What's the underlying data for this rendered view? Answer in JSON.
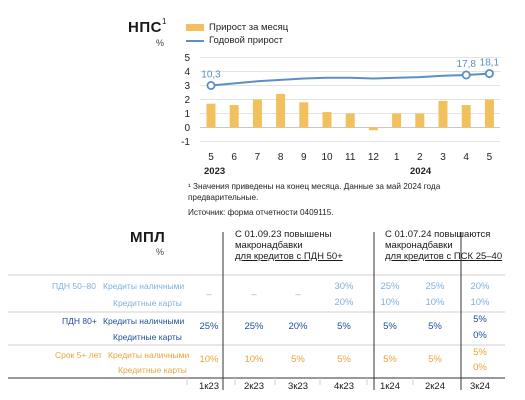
{
  "nps": {
    "title": "НПС",
    "title_sup": "1",
    "unit": "%",
    "legend_bar": "Прирост за месяц",
    "legend_line": "Годовой прирост",
    "footnote": "¹ Значения приведены на конец месяца. Данные за май 2024 года предварительные.",
    "source": "Источник: форма отчетности 0409115."
  },
  "chart_data": {
    "type": "bar",
    "categories": [
      "5",
      "6",
      "7",
      "8",
      "9",
      "10",
      "11",
      "12",
      "1",
      "2",
      "3",
      "4",
      "5"
    ],
    "year_labels": [
      {
        "text": "2023",
        "at_index": 0
      },
      {
        "text": "2024",
        "at_index": 8
      }
    ],
    "series": [
      {
        "name": "Прирост за месяц",
        "type": "bar",
        "values": [
          1.7,
          1.6,
          2.0,
          2.4,
          1.8,
          1.1,
          1.0,
          -0.2,
          1.0,
          1.0,
          1.9,
          1.6,
          2.0
        ]
      },
      {
        "name": "Годовой прирост",
        "type": "line",
        "values": [
          3.0,
          3.15,
          3.3,
          3.4,
          3.5,
          3.55,
          3.55,
          3.5,
          3.55,
          3.6,
          3.7,
          3.75,
          3.85
        ]
      }
    ],
    "line_labels": [
      {
        "index": 0,
        "text": "10,3"
      },
      {
        "index": 11,
        "text": "17,8"
      },
      {
        "index": 12,
        "text": "18,1"
      }
    ],
    "yticks": [
      -1,
      0,
      1,
      2,
      3,
      4,
      5
    ],
    "ylim": [
      -1,
      5
    ],
    "colors": {
      "bar": "#f2c05c",
      "line": "#5b8fc7",
      "grid": "#c8c8c8"
    }
  },
  "mpl": {
    "title": "МПЛ",
    "unit": "%",
    "ann1": [
      "С 01.09.23 повышены",
      "макронадбавки",
      "для кредитов с ПДН 50+"
    ],
    "ann2": [
      "С 01.07.24 повышаются",
      "макронадбавки",
      "для кредитов с ПСК 25–40"
    ],
    "groups": [
      {
        "label": "ПДН 50–80",
        "color": "#7fb2dd",
        "rows": [
          {
            "label": "Кредиты наличными",
            "cells": [
              "–",
              "–",
              "–",
              "30%",
              "25%",
              "25%",
              "20%"
            ]
          },
          {
            "label": "Кредитные карты",
            "cells": [
              "",
              "",
              "",
              "20%",
              "10%",
              "10%",
              "10%"
            ]
          }
        ]
      },
      {
        "label": "ПДН 80+",
        "color": "#1f4e99",
        "rows": [
          {
            "label": "Кредиты наличными",
            "cells": [
              "25%",
              "25%",
              "20%",
              "5%",
              "5%",
              "5%",
              "5%"
            ]
          },
          {
            "label": "Кредитные карты",
            "cells": [
              "",
              "",
              "",
              "",
              "",
              "",
              "0%"
            ]
          }
        ]
      },
      {
        "label": "Срок 5+ лет",
        "color": "#e8a33c",
        "rows": [
          {
            "label": "Кредиты наличными",
            "cells": [
              "10%",
              "10%",
              "5%",
              "5%",
              "5%",
              "5%",
              "5%"
            ]
          },
          {
            "label": "Кредитные карты",
            "cells": [
              "",
              "",
              "",
              "",
              "",
              "",
              "0%"
            ]
          }
        ]
      }
    ],
    "quarters": [
      "1к23",
      "2к23",
      "3к23",
      "4к23",
      "1к24",
      "2к24",
      "3к24"
    ]
  }
}
